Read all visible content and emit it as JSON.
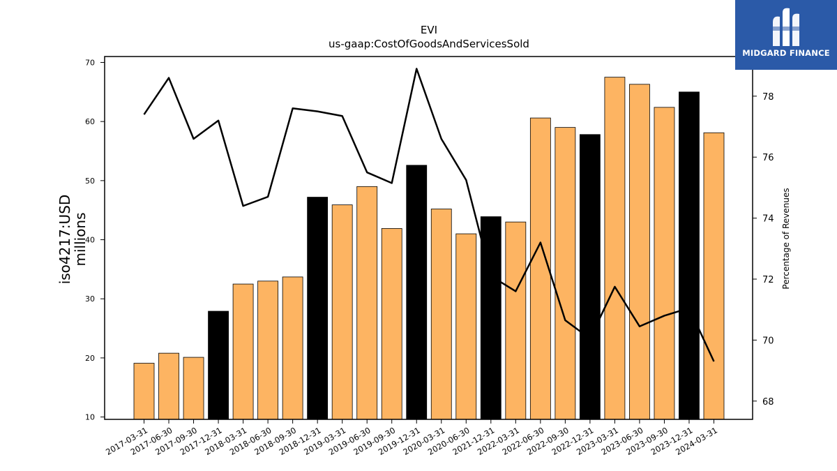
{
  "logo": {
    "text": "MIDGARD FINANCE",
    "icon": "midgard-logo-icon",
    "bg_color": "#2b5aa8"
  },
  "chart_data": {
    "type": "bar",
    "title": "EVI",
    "subtitle": "us-gaap:CostOfGoodsAndServicesSold",
    "ylabel": "iso4217:USD\nmillions",
    "y2label": "Percentage of Revenues",
    "ylim": [
      9.6,
      71
    ],
    "y2lim": [
      67.4,
      79.3
    ],
    "yticks": [
      10,
      20,
      30,
      40,
      50,
      60,
      70
    ],
    "y2ticks": [
      68,
      70,
      72,
      74,
      76,
      78
    ],
    "grid": false,
    "colors": {
      "quarter": "#fdb462",
      "year_end": "#000000",
      "line": "#000000"
    },
    "categories": [
      "2017-03-31",
      "2017-06-30",
      "2017-09-30",
      "2017-12-31",
      "2018-03-31",
      "2018-06-30",
      "2018-09-30",
      "2018-12-31",
      "2019-03-31",
      "2019-06-30",
      "2019-09-30",
      "2019-12-31",
      "2020-03-31",
      "2020-06-30",
      "2021-12-31",
      "2022-03-31",
      "2022-06-30",
      "2022-09-30",
      "2022-12-31",
      "2023-03-31",
      "2023-06-30",
      "2023-09-30",
      "2023-12-31",
      "2024-03-31"
    ],
    "series": [
      {
        "values": [
          19.1,
          20.8,
          20.1,
          27.9,
          32.5,
          33.0,
          33.7,
          47.2,
          45.9,
          49.0,
          41.9,
          52.6,
          45.2,
          41.0,
          43.9,
          43.0,
          60.6,
          59.0,
          57.8,
          67.5,
          66.3,
          62.4,
          65.0,
          58.1
        ],
        "highlight_year_end": true
      },
      {
        "values": [
          77.4,
          78.6,
          76.6,
          77.2,
          74.4,
          74.7,
          77.6,
          77.5,
          77.35,
          75.5,
          75.15,
          78.9,
          76.6,
          75.25,
          72.1,
          71.6,
          73.2,
          70.65,
          70.05,
          71.75,
          70.45,
          70.8,
          71.05,
          69.3
        ],
        "axis": "right"
      }
    ]
  }
}
